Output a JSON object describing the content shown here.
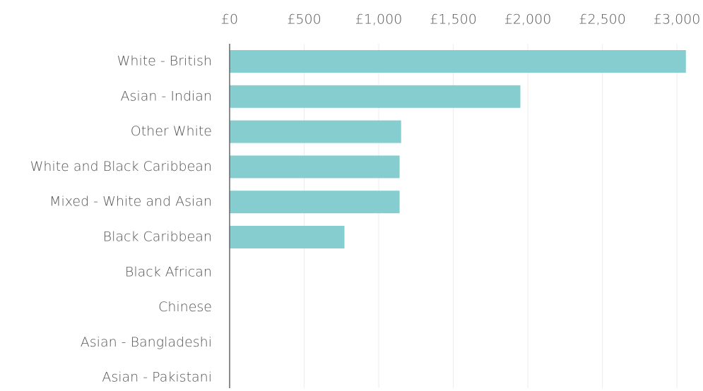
{
  "chart_data": {
    "type": "bar",
    "orientation": "horizontal",
    "categories": [
      "White - British",
      "Asian - Indian",
      "Other White",
      "White and Black Caribbean",
      "Mixed - White and Asian",
      "Black Caribbean",
      "Black African",
      "Chinese",
      "Asian - Bangladeshi",
      "Asian - Pakistani"
    ],
    "values": [
      3060,
      1950,
      1150,
      1140,
      1140,
      770,
      0,
      0,
      0,
      0
    ],
    "color": "#86cdd0",
    "xlim": [
      0,
      3170
    ],
    "xticks": [
      {
        "value": 0,
        "label": "£0"
      },
      {
        "value": 500,
        "label": "£500"
      },
      {
        "value": 1000,
        "label": "£1,000"
      },
      {
        "value": 1500,
        "label": "£1,500"
      },
      {
        "value": 2000,
        "label": "£2,000"
      },
      {
        "value": 2500,
        "label": "£2,500"
      },
      {
        "value": 3000,
        "label": "£3,000"
      }
    ],
    "grid": true
  }
}
